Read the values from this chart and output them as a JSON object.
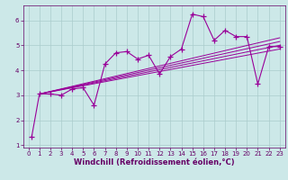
{
  "xlabel": "Windchill (Refroidissement éolien,°C)",
  "bg_color": "#cce8e8",
  "line_color": "#990099",
  "marker": "+",
  "series": [
    [
      0.3,
      1.35
    ],
    [
      1.0,
      3.05
    ],
    [
      2.0,
      3.05
    ],
    [
      3.0,
      3.0
    ],
    [
      4.0,
      3.25
    ],
    [
      5.0,
      3.3
    ],
    [
      6.0,
      2.6
    ],
    [
      7.0,
      4.25
    ],
    [
      8.0,
      4.7
    ],
    [
      9.0,
      4.75
    ],
    [
      10.0,
      4.45
    ],
    [
      11.0,
      4.6
    ],
    [
      12.0,
      3.85
    ],
    [
      13.0,
      4.55
    ],
    [
      14.0,
      4.85
    ],
    [
      15.0,
      6.25
    ],
    [
      16.0,
      6.15
    ],
    [
      17.0,
      5.2
    ],
    [
      18.0,
      5.6
    ],
    [
      19.0,
      5.35
    ],
    [
      20.0,
      5.35
    ],
    [
      21.0,
      3.45
    ],
    [
      22.0,
      4.95
    ],
    [
      23.0,
      4.95
    ]
  ],
  "trend_lines": [
    [
      1.0,
      3.05,
      23.0,
      4.85
    ],
    [
      1.0,
      3.05,
      23.0,
      5.0
    ],
    [
      1.0,
      3.05,
      23.0,
      5.15
    ],
    [
      1.0,
      3.05,
      23.0,
      5.3
    ]
  ],
  "xlim": [
    -0.5,
    23.5
  ],
  "ylim": [
    0.9,
    6.6
  ],
  "yticks": [
    1,
    2,
    3,
    4,
    5,
    6
  ],
  "xticks": [
    0,
    1,
    2,
    3,
    4,
    5,
    6,
    7,
    8,
    9,
    10,
    11,
    12,
    13,
    14,
    15,
    16,
    17,
    18,
    19,
    20,
    21,
    22,
    23
  ],
  "grid_color": "#aacccc",
  "axis_label_color": "#660066",
  "tick_color": "#660066",
  "tick_fontsize": 5.0,
  "xlabel_fontsize": 6.0
}
